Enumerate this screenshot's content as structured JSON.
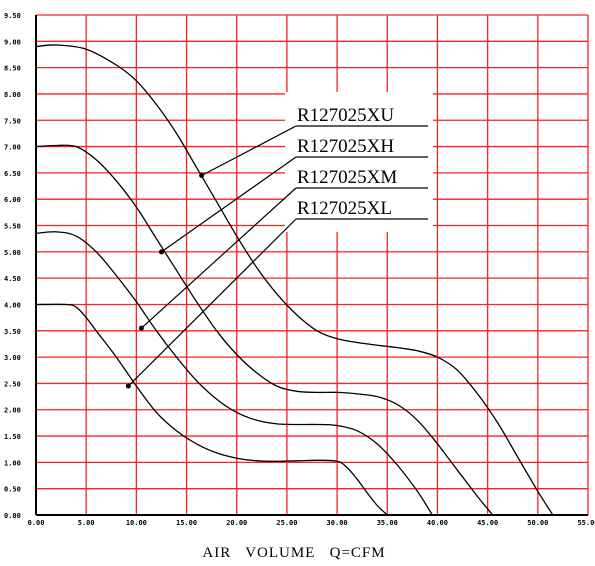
{
  "chart_data": {
    "type": "line",
    "xlabel": "AIR   VOLUME   Q=CFM",
    "ylabel": "",
    "xlim": [
      0,
      55
    ],
    "ylim": [
      0,
      9.5
    ],
    "grid": true,
    "x_ticks": [
      "0.00",
      "5.00",
      "10.00",
      "15.00",
      "20.00",
      "25.00",
      "30.00",
      "35.00",
      "40.00",
      "45.00",
      "50.00",
      "55.00"
    ],
    "y_ticks": [
      "0.00",
      "0.50",
      "1.00",
      "1.50",
      "2.00",
      "2.50",
      "3.00",
      "3.50",
      "4.00",
      "4.50",
      "5.00",
      "5.50",
      "6.00",
      "6.50",
      "7.00",
      "7.50",
      "8.00",
      "8.50",
      "9.00",
      "9.50"
    ],
    "legend_placement": "top-right",
    "series": [
      {
        "name": "R127025XU",
        "x": [
          0,
          2,
          5,
          8,
          10,
          12,
          14,
          16,
          18,
          20,
          22,
          24,
          26,
          28,
          30,
          33,
          36,
          38,
          40,
          42,
          44,
          46,
          48,
          50,
          51.5
        ],
        "y": [
          8.9,
          8.93,
          8.85,
          8.55,
          8.25,
          7.8,
          7.25,
          6.6,
          5.95,
          5.3,
          4.7,
          4.2,
          3.8,
          3.5,
          3.35,
          3.25,
          3.18,
          3.12,
          3.0,
          2.75,
          2.3,
          1.75,
          1.1,
          0.45,
          0.0
        ]
      },
      {
        "name": "R127025XH",
        "x": [
          0,
          2,
          4,
          6,
          8,
          10,
          12,
          14,
          16,
          18,
          20,
          22,
          24,
          26,
          28,
          30,
          32,
          34,
          36,
          38,
          40,
          42,
          44,
          45.5
        ],
        "y": [
          7.0,
          7.02,
          7.0,
          6.75,
          6.35,
          5.85,
          5.25,
          4.65,
          4.05,
          3.5,
          3.05,
          2.7,
          2.45,
          2.35,
          2.33,
          2.33,
          2.3,
          2.25,
          2.1,
          1.8,
          1.35,
          0.85,
          0.35,
          0.0
        ]
      },
      {
        "name": "R127025XM",
        "x": [
          0,
          2,
          4,
          6,
          8,
          10,
          12,
          14,
          16,
          18,
          20,
          22,
          24,
          26,
          28,
          30,
          32,
          34,
          36,
          38,
          39.5
        ],
        "y": [
          5.35,
          5.38,
          5.3,
          5.0,
          4.55,
          4.05,
          3.5,
          3.0,
          2.55,
          2.2,
          1.95,
          1.8,
          1.73,
          1.72,
          1.72,
          1.7,
          1.6,
          1.35,
          0.95,
          0.45,
          0.0
        ]
      },
      {
        "name": "R127025XL",
        "x": [
          0,
          3,
          4,
          5,
          6,
          8,
          10,
          12,
          14,
          16,
          18,
          20,
          22,
          24,
          26,
          28,
          30,
          31,
          32,
          33,
          34,
          35
        ],
        "y": [
          4.0,
          4.0,
          3.95,
          3.75,
          3.5,
          3.0,
          2.45,
          1.95,
          1.6,
          1.35,
          1.18,
          1.08,
          1.03,
          1.02,
          1.03,
          1.04,
          1.02,
          0.9,
          0.68,
          0.42,
          0.18,
          0.0
        ]
      }
    ],
    "colors": {
      "grid": "#ff2020",
      "axis": "#000000",
      "line": "#000000"
    }
  }
}
